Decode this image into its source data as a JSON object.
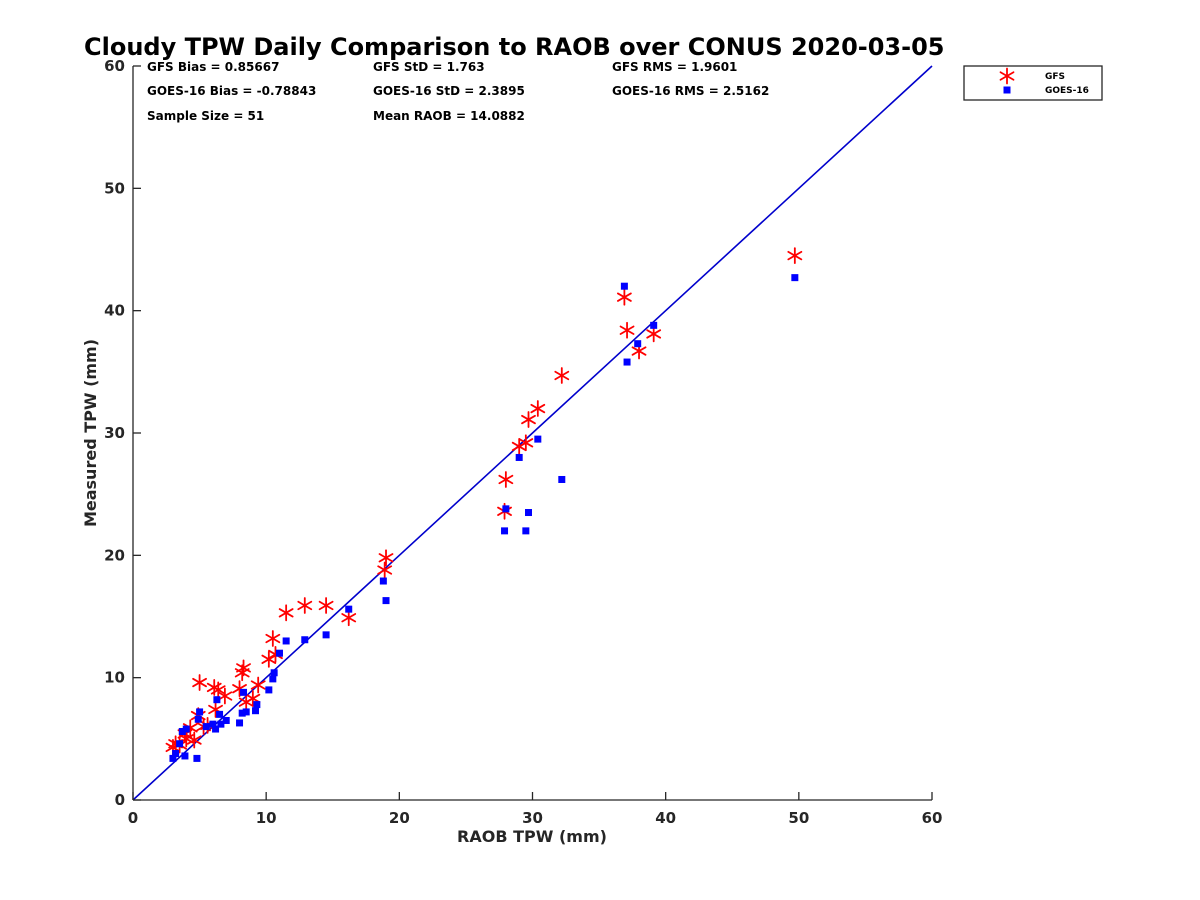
{
  "chart_data": {
    "type": "scatter",
    "title": "Cloudy TPW Daily Comparison to RAOB over CONUS 2020-03-05",
    "xlabel": "RAOB TPW (mm)",
    "ylabel": "Measured TPW (mm)",
    "xlim": [
      0,
      60
    ],
    "ylim": [
      0,
      60
    ],
    "xticks": [
      "0",
      "10",
      "20",
      "30",
      "40",
      "50",
      "60"
    ],
    "yticks": [
      "0",
      "10",
      "20",
      "30",
      "40",
      "50",
      "60"
    ],
    "grid": false,
    "legend_position": "top-right, outside plot",
    "reference_line": {
      "from": [
        0,
        0
      ],
      "to": [
        60,
        60
      ],
      "color": "#0000cc"
    },
    "stats": [
      "GFS Bias = 0.85667",
      "GFS StD = 1.763",
      "GFS RMS = 1.9601",
      "GOES-16 Bias = -0.78843",
      "GOES-16 StD = 2.3895",
      "GOES-16 RMS = 2.5162",
      "Sample Size = 51",
      "Mean RAOB = 14.0882"
    ],
    "series": [
      {
        "name": "GFS",
        "marker": "asterisk",
        "color": "#ff0000",
        "points": [
          [
            3.0,
            4.3
          ],
          [
            3.2,
            4.6
          ],
          [
            3.5,
            4.5
          ],
          [
            3.9,
            5.4
          ],
          [
            4.0,
            5.0
          ],
          [
            4.3,
            5.9
          ],
          [
            4.6,
            4.9
          ],
          [
            4.9,
            6.9
          ],
          [
            5.0,
            9.6
          ],
          [
            5.3,
            6.0
          ],
          [
            5.6,
            6.1
          ],
          [
            6.1,
            9.2
          ],
          [
            6.2,
            7.4
          ],
          [
            6.4,
            9.0
          ],
          [
            6.9,
            8.5
          ],
          [
            8.0,
            9.1
          ],
          [
            8.2,
            10.4
          ],
          [
            8.3,
            10.8
          ],
          [
            8.5,
            8.0
          ],
          [
            9.0,
            8.3
          ],
          [
            9.4,
            9.4
          ],
          [
            10.2,
            11.5
          ],
          [
            10.5,
            13.2
          ],
          [
            10.7,
            11.9
          ],
          [
            11.5,
            15.3
          ],
          [
            12.9,
            15.9
          ],
          [
            14.5,
            15.9
          ],
          [
            16.2,
            14.9
          ],
          [
            18.9,
            18.8
          ],
          [
            19.0,
            19.8
          ],
          [
            27.9,
            23.6
          ],
          [
            28.0,
            26.2
          ],
          [
            29.0,
            28.9
          ],
          [
            29.5,
            29.2
          ],
          [
            29.7,
            31.1
          ],
          [
            30.4,
            32.0
          ],
          [
            32.2,
            34.7
          ],
          [
            36.9,
            41.1
          ],
          [
            37.1,
            38.4
          ],
          [
            38.0,
            36.7
          ],
          [
            39.1,
            38.1
          ],
          [
            49.7,
            44.5
          ]
        ]
      },
      {
        "name": "GOES-16",
        "marker": "square",
        "color": "#0000ff",
        "points": [
          [
            3.0,
            3.4
          ],
          [
            3.2,
            3.8
          ],
          [
            3.5,
            4.6
          ],
          [
            3.7,
            5.6
          ],
          [
            3.9,
            3.6
          ],
          [
            4.0,
            5.8
          ],
          [
            4.8,
            3.4
          ],
          [
            4.9,
            6.6
          ],
          [
            5.0,
            7.2
          ],
          [
            5.5,
            6.0
          ],
          [
            6.0,
            6.2
          ],
          [
            6.2,
            5.8
          ],
          [
            6.3,
            8.2
          ],
          [
            6.5,
            7.0
          ],
          [
            6.6,
            6.2
          ],
          [
            7.0,
            6.5
          ],
          [
            8.0,
            6.3
          ],
          [
            8.2,
            7.1
          ],
          [
            8.3,
            8.8
          ],
          [
            8.5,
            7.2
          ],
          [
            9.2,
            7.3
          ],
          [
            9.3,
            7.8
          ],
          [
            10.2,
            9.0
          ],
          [
            10.5,
            9.9
          ],
          [
            10.6,
            10.4
          ],
          [
            11.0,
            12.0
          ],
          [
            11.5,
            13.0
          ],
          [
            12.9,
            13.1
          ],
          [
            14.5,
            13.5
          ],
          [
            16.2,
            15.6
          ],
          [
            18.8,
            17.9
          ],
          [
            19.0,
            16.3
          ],
          [
            27.9,
            22.0
          ],
          [
            28.0,
            23.8
          ],
          [
            29.0,
            28.0
          ],
          [
            29.5,
            22.0
          ],
          [
            29.7,
            23.5
          ],
          [
            30.4,
            29.5
          ],
          [
            32.2,
            26.2
          ],
          [
            36.9,
            42.0
          ],
          [
            37.1,
            35.8
          ],
          [
            37.9,
            37.3
          ],
          [
            39.1,
            38.8
          ],
          [
            49.7,
            42.7
          ]
        ]
      }
    ]
  }
}
